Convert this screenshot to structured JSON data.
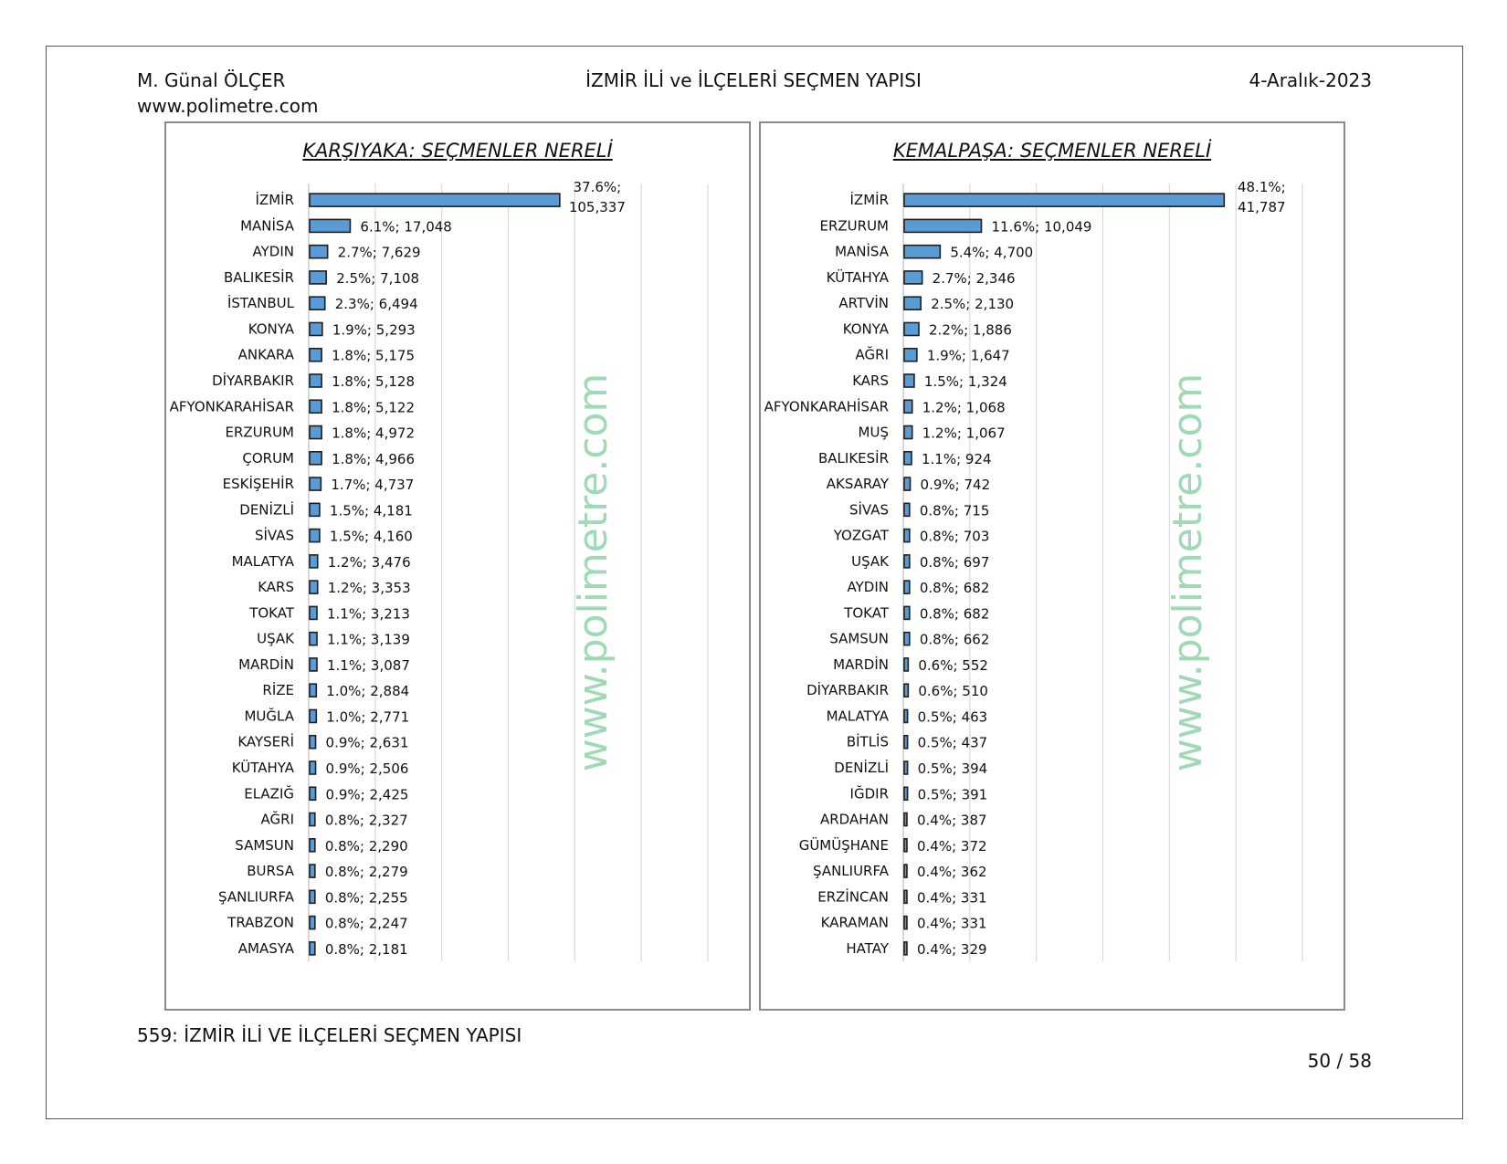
{
  "header": {
    "author": "M. Günal ÖLÇER",
    "website": "www.polimetre.com",
    "title": "İZMİR İLİ ve İLÇELERİ SEÇMEN YAPISI",
    "date": "4-Aralık-2023"
  },
  "footer": {
    "caption": "559: İZMİR İLİ VE İLÇELERİ SEÇMEN YAPISI",
    "page": "50 / 58"
  },
  "watermark": "www.polimetre.com",
  "colors": {
    "bar": "#5b9bd5",
    "bar_border": "#1f1f1f",
    "grid": "#d9d9d9",
    "watermark": "#8fd4a8"
  },
  "chart_data": [
    {
      "type": "bar",
      "orientation": "horizontal",
      "title": "KARŞIYAKA: SEÇMENLER NERELİ",
      "xlim": [
        0,
        60
      ],
      "grid": true,
      "categories": [
        "İZMİR",
        "MANİSA",
        "AYDIN",
        "BALIKESİR",
        "İSTANBUL",
        "KONYA",
        "ANKARA",
        "DİYARBAKIR",
        "AFYONKARAHİSAR",
        "ERZURUM",
        "ÇORUM",
        "ESKİŞEHİR",
        "DENİZLİ",
        "SİVAS",
        "MALATYA",
        "KARS",
        "TOKAT",
        "UŞAK",
        "MARDİN",
        "RİZE",
        "MUĞLA",
        "KAYSERİ",
        "KÜTAHYA",
        "ELAZIĞ",
        "AĞRI",
        "SAMSUN",
        "BURSA",
        "ŞANLIURFA",
        "TRABZON",
        "AMASYA"
      ],
      "values": [
        37.6,
        6.1,
        2.7,
        2.5,
        2.3,
        1.9,
        1.8,
        1.8,
        1.8,
        1.8,
        1.8,
        1.7,
        1.5,
        1.5,
        1.2,
        1.2,
        1.1,
        1.1,
        1.1,
        1.0,
        1.0,
        0.9,
        0.9,
        0.9,
        0.8,
        0.8,
        0.8,
        0.8,
        0.8,
        0.8
      ],
      "counts": [
        "105,337",
        "17,048",
        "7,629",
        "7,108",
        "6,494",
        "5,293",
        "5,175",
        "5,128",
        "5,122",
        "4,972",
        "4,966",
        "4,737",
        "4,181",
        "4,160",
        "3,476",
        "3,353",
        "3,213",
        "3,139",
        "3,087",
        "2,884",
        "2,771",
        "2,631",
        "2,506",
        "2,425",
        "2,327",
        "2,290",
        "2,279",
        "2,255",
        "2,247",
        "2,181"
      ],
      "labels": [
        "37.6%; 105,337",
        "6.1%; 17,048",
        "2.7%; 7,629",
        "2.5%; 7,108",
        "2.3%; 6,494",
        "1.9%; 5,293",
        "1.8%; 5,175",
        "1.8%; 5,128",
        "1.8%; 5,122",
        "1.8%; 4,972",
        "1.8%; 4,966",
        "1.7%; 4,737",
        "1.5%; 4,181",
        "1.5%; 4,160",
        "1.2%; 3,476",
        "1.2%; 3,353",
        "1.1%; 3,213",
        "1.1%; 3,139",
        "1.1%; 3,087",
        "1.0%; 2,884",
        "1.0%; 2,771",
        "0.9%; 2,631",
        "0.9%; 2,506",
        "0.9%; 2,425",
        "0.8%; 2,327",
        "0.8%; 2,290",
        "0.8%; 2,279",
        "0.8%; 2,255",
        "0.8%; 2,247",
        "0.8%; 2,181"
      ]
    },
    {
      "type": "bar",
      "orientation": "horizontal",
      "title": "KEMALPAŞA: SEÇMENLER NERELİ",
      "xlim": [
        0,
        60
      ],
      "grid": true,
      "categories": [
        "İZMİR",
        "ERZURUM",
        "MANİSA",
        "KÜTAHYA",
        "ARTVİN",
        "KONYA",
        "AĞRI",
        "KARS",
        "AFYONKARAHİSAR",
        "MUŞ",
        "BALIKESİR",
        "AKSARAY",
        "SİVAS",
        "YOZGAT",
        "UŞAK",
        "AYDIN",
        "TOKAT",
        "SAMSUN",
        "MARDİN",
        "DİYARBAKIR",
        "MALATYA",
        "BİTLİS",
        "DENİZLİ",
        "IĞDIR",
        "ARDAHAN",
        "GÜMÜŞHANE",
        "ŞANLIURFA",
        "ERZİNCAN",
        "KARAMAN",
        "HATAY"
      ],
      "values": [
        48.1,
        11.6,
        5.4,
        2.7,
        2.5,
        2.2,
        1.9,
        1.5,
        1.2,
        1.2,
        1.1,
        0.9,
        0.8,
        0.8,
        0.8,
        0.8,
        0.8,
        0.8,
        0.6,
        0.6,
        0.5,
        0.5,
        0.5,
        0.5,
        0.4,
        0.4,
        0.4,
        0.4,
        0.4,
        0.4
      ],
      "counts": [
        "41,787",
        "10,049",
        "4,700",
        "2,346",
        "2,130",
        "1,886",
        "1,647",
        "1,324",
        "1,068",
        "1,067",
        "924",
        "742",
        "715",
        "703",
        "697",
        "682",
        "682",
        "662",
        "552",
        "510",
        "463",
        "437",
        "394",
        "391",
        "387",
        "372",
        "362",
        "331",
        "331",
        "329"
      ],
      "labels": [
        "48.1%; 41,787",
        "11.6%; 10,049",
        "5.4%; 4,700",
        "2.7%; 2,346",
        "2.5%; 2,130",
        "2.2%; 1,886",
        "1.9%; 1,647",
        "1.5%; 1,324",
        "1.2%; 1,068",
        "1.2%; 1,067",
        "1.1%; 924",
        "0.9%; 742",
        "0.8%; 715",
        "0.8%; 703",
        "0.8%; 697",
        "0.8%; 682",
        "0.8%; 682",
        "0.8%; 662",
        "0.6%; 552",
        "0.6%; 510",
        "0.5%; 463",
        "0.5%; 437",
        "0.5%; 394",
        "0.5%; 391",
        "0.4%; 387",
        "0.4%; 372",
        "0.4%; 362",
        "0.4%; 331",
        "0.4%; 331",
        "0.4%; 329"
      ]
    }
  ]
}
